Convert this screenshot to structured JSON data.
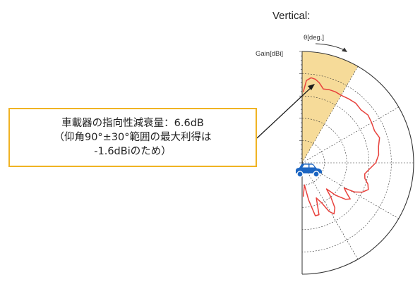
{
  "chart_data": {
    "type": "polar-line",
    "title": "Vertical:",
    "radial_axis_label": "Gain[dBi]",
    "angle_axis_label": "θ[deg.]",
    "radial_range": [
      -40,
      10
    ],
    "radial_ticks": [
      "10",
      "0",
      "-10",
      "-20",
      "-30",
      "-40"
    ],
    "angle_range": [
      0,
      180
    ],
    "angle_ticks": [
      "0",
      "30",
      "60",
      "90",
      "120",
      "150",
      "180"
    ],
    "grid": true,
    "highlight_sector": {
      "from_deg": 0,
      "to_deg": 30,
      "color": "#f5d78e"
    },
    "series": [
      {
        "color": "#e8413c",
        "points": [
          [
            1,
            -8
          ],
          [
            3,
            -3
          ],
          [
            6,
            -1.6
          ],
          [
            9,
            -2
          ],
          [
            12,
            -3.2
          ],
          [
            16,
            -5.5
          ],
          [
            20,
            -5
          ],
          [
            25,
            -4.8
          ],
          [
            30,
            -5
          ],
          [
            36,
            -4.5
          ],
          [
            42,
            -4
          ],
          [
            48,
            -4.5
          ],
          [
            54,
            -3.5
          ],
          [
            60,
            -4
          ],
          [
            66,
            -4.5
          ],
          [
            72,
            -3.5
          ],
          [
            78,
            -5
          ],
          [
            84,
            -5.5
          ],
          [
            90,
            -7
          ],
          [
            96,
            -10
          ],
          [
            100,
            -11.5
          ],
          [
            104,
            -11
          ],
          [
            108,
            -9
          ],
          [
            112,
            -8
          ],
          [
            116,
            -10
          ],
          [
            119,
            -13
          ],
          [
            121,
            -18
          ],
          [
            124,
            -16
          ],
          [
            127,
            -13
          ],
          [
            130,
            -14.5
          ],
          [
            134,
            -19
          ],
          [
            137,
            -24
          ],
          [
            140,
            -20
          ],
          [
            144,
            -15
          ],
          [
            148,
            -13
          ],
          [
            151,
            -15
          ],
          [
            154,
            -20
          ],
          [
            158,
            -23
          ],
          [
            162,
            -15.5
          ],
          [
            166,
            -15.5
          ],
          [
            170,
            -23
          ],
          [
            174,
            -30
          ],
          [
            178,
            -25
          ]
        ]
      }
    ]
  },
  "callout": {
    "line1": "車載器の指向性減衰量：6.6dB",
    "line2": "（仰角90°±30°範囲の最大利得は",
    "line3": "-1.6dBiのため）"
  },
  "icons": {
    "vehicle": "car-icon"
  },
  "colors": {
    "callout_border": "#f0b323",
    "grid": "#333333",
    "series": "#e8413c"
  }
}
